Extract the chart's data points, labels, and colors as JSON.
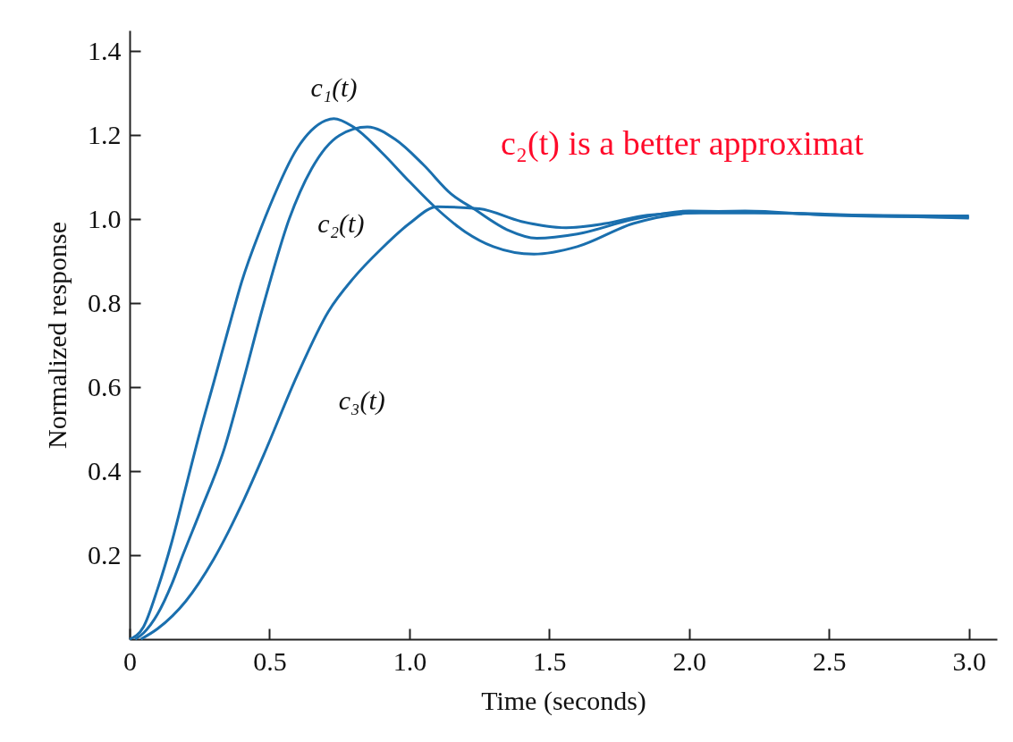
{
  "chart_data": {
    "type": "line",
    "xlabel": "Time (seconds)",
    "ylabel": "Normalized response",
    "xlim": [
      0,
      3.1
    ],
    "ylim": [
      0,
      1.45
    ],
    "xticks": [
      0,
      0.5,
      {
        "value": 1,
        "label": "1.0"
      },
      1.5,
      {
        "value": 2,
        "label": "2.0"
      },
      2.5,
      {
        "value": 3,
        "label": "3.0"
      }
    ],
    "yticks": [
      0.2,
      0.4,
      0.6,
      0.8,
      {
        "value": 1,
        "label": "1.0"
      },
      1.2,
      1.4
    ],
    "grid": false,
    "legend": false,
    "marker": "none",
    "line_style": "solid",
    "annotations": [
      "c₂(t) is a better approximat"
    ],
    "series": [
      {
        "name": "c₁(t)",
        "color": "#1a6fae",
        "x": [
          0,
          0.05,
          0.1,
          0.15,
          0.2,
          0.25,
          0.3,
          0.37,
          0.4,
          0.47,
          0.5,
          0.6,
          0.7,
          0.73,
          0.8,
          0.9,
          1.0,
          1.09,
          1.2,
          1.3,
          1.445,
          1.6,
          1.8,
          2.0,
          2.2,
          2.5,
          3.0
        ],
        "values": [
          0,
          0.03,
          0.12,
          0.23,
          0.36,
          0.49,
          0.61,
          0.78,
          0.85,
          0.98,
          1.03,
          1.17,
          1.235,
          1.24,
          1.22,
          1.16,
          1.09,
          1.03,
          0.97,
          0.935,
          0.917,
          0.935,
          0.99,
          1.015,
          1.02,
          1.01,
          1.005
        ]
      },
      {
        "name": "c₂(t)",
        "color": "#1a6fae",
        "x": [
          0.02,
          0.05,
          0.1,
          0.15,
          0.19,
          0.25,
          0.34,
          0.4,
          0.48,
          0.57,
          0.65,
          0.75,
          0.85,
          0.95,
          1.05,
          1.15,
          1.23,
          1.35,
          1.455,
          1.6,
          1.8,
          2.0,
          2.3,
          2.6,
          3.0
        ],
        "values": [
          0,
          0.015,
          0.06,
          0.13,
          0.2,
          0.3,
          0.457,
          0.6,
          0.8,
          1.0,
          1.12,
          1.2,
          1.22,
          1.19,
          1.13,
          1.06,
          1.025,
          0.975,
          0.955,
          0.965,
          1.0,
          1.02,
          1.015,
          1.01,
          1.008
        ]
      },
      {
        "name": "c₃(t)",
        "color": "#1a6fae",
        "x": [
          0.04,
          0.1,
          0.2,
          0.3,
          0.4,
          0.48,
          0.6,
          0.71,
          0.8,
          0.9,
          1.0,
          1.1,
          1.25,
          1.4,
          1.56,
          1.7,
          1.85,
          2.0,
          2.3,
          2.6,
          3.0
        ],
        "values": [
          0,
          0.025,
          0.09,
          0.19,
          0.32,
          0.44,
          0.63,
          0.78,
          0.86,
          0.93,
          0.99,
          1.03,
          1.025,
          0.995,
          0.98,
          0.99,
          1.01,
          1.015,
          1.015,
          1.01,
          1.003
        ]
      }
    ]
  }
}
